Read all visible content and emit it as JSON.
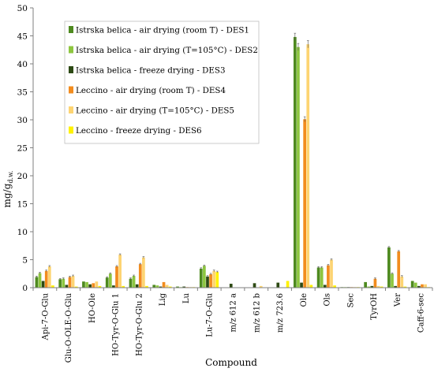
{
  "chart_data": {
    "type": "bar",
    "xlabel": "Compound",
    "ylabel": "mg/g d.w.",
    "ylabel_main": "mg/g",
    "ylabel_sub": "d.w.",
    "ylim": [
      0,
      50
    ],
    "yticks": [
      "0",
      "5",
      "10",
      "15",
      "20",
      "25",
      "30",
      "35",
      "40",
      "45",
      "50"
    ],
    "grid": false,
    "legend_position": "top-left",
    "categories": [
      "Api-7-O-Glu",
      "Glu-O-OLE-O-Glu",
      "HO-Ole",
      "HO-Tyr-O-Glu 1",
      "HO-Tyr-O-Glu 2",
      "Lig",
      "Lu",
      "Lu-7-O-Glu",
      "m/z 612 a",
      "m/z 612 b",
      "m/z 723.6",
      "Ole",
      "Ols",
      "Sec",
      "TyrOH",
      "Ver",
      "Caff-6-sec"
    ],
    "series": [
      {
        "name": "Istrska belica - air drying (room T) - DES1",
        "color": "#4e8a1f",
        "values": [
          1.9,
          1.5,
          1.1,
          1.8,
          1.6,
          0.5,
          0.2,
          3.4,
          0.0,
          0.0,
          0.0,
          44.8,
          3.6,
          0.1,
          1.0,
          7.2,
          1.2
        ]
      },
      {
        "name": "Istrska belica - air drying (T=105°C) - DES2",
        "color": "#8dc63f",
        "values": [
          2.6,
          1.6,
          1.0,
          2.5,
          2.1,
          0.4,
          0.1,
          3.9,
          0.0,
          0.0,
          0.0,
          43.0,
          3.6,
          0.1,
          0.2,
          2.5,
          0.9
        ]
      },
      {
        "name": "Istrska belica - freeze drying - DES3",
        "color": "#2d4a14",
        "values": [
          1.2,
          0.5,
          0.6,
          0.4,
          0.6,
          0.2,
          0.2,
          2.0,
          0.7,
          0.8,
          0.9,
          0.9,
          0.5,
          0.1,
          0.3,
          0.3,
          0.3
        ]
      },
      {
        "name": "Leccino - air drying (room T) - DES4",
        "color": "#f28c1e",
        "values": [
          3.0,
          1.9,
          0.8,
          3.8,
          4.2,
          1.0,
          0.1,
          2.4,
          0.0,
          0.0,
          0.0,
          30.1,
          4.0,
          0.1,
          1.6,
          6.5,
          0.6
        ]
      },
      {
        "name": "Leccino - air drying (T=105°C) - DES5",
        "color": "#fdd472",
        "values": [
          3.8,
          2.1,
          1.1,
          5.9,
          5.4,
          0.5,
          0.1,
          3.0,
          0.0,
          0.3,
          0.0,
          43.5,
          5.0,
          0.1,
          0.3,
          2.0,
          0.6
        ]
      },
      {
        "name": "Leccino - freeze drying - DES6",
        "color": "#fff200",
        "values": [
          0.4,
          0.2,
          0.3,
          0.3,
          0.3,
          0.2,
          0.1,
          2.8,
          0.0,
          0.0,
          1.2,
          0.5,
          0.4,
          0.1,
          0.2,
          0.2,
          0.1
        ]
      }
    ]
  }
}
